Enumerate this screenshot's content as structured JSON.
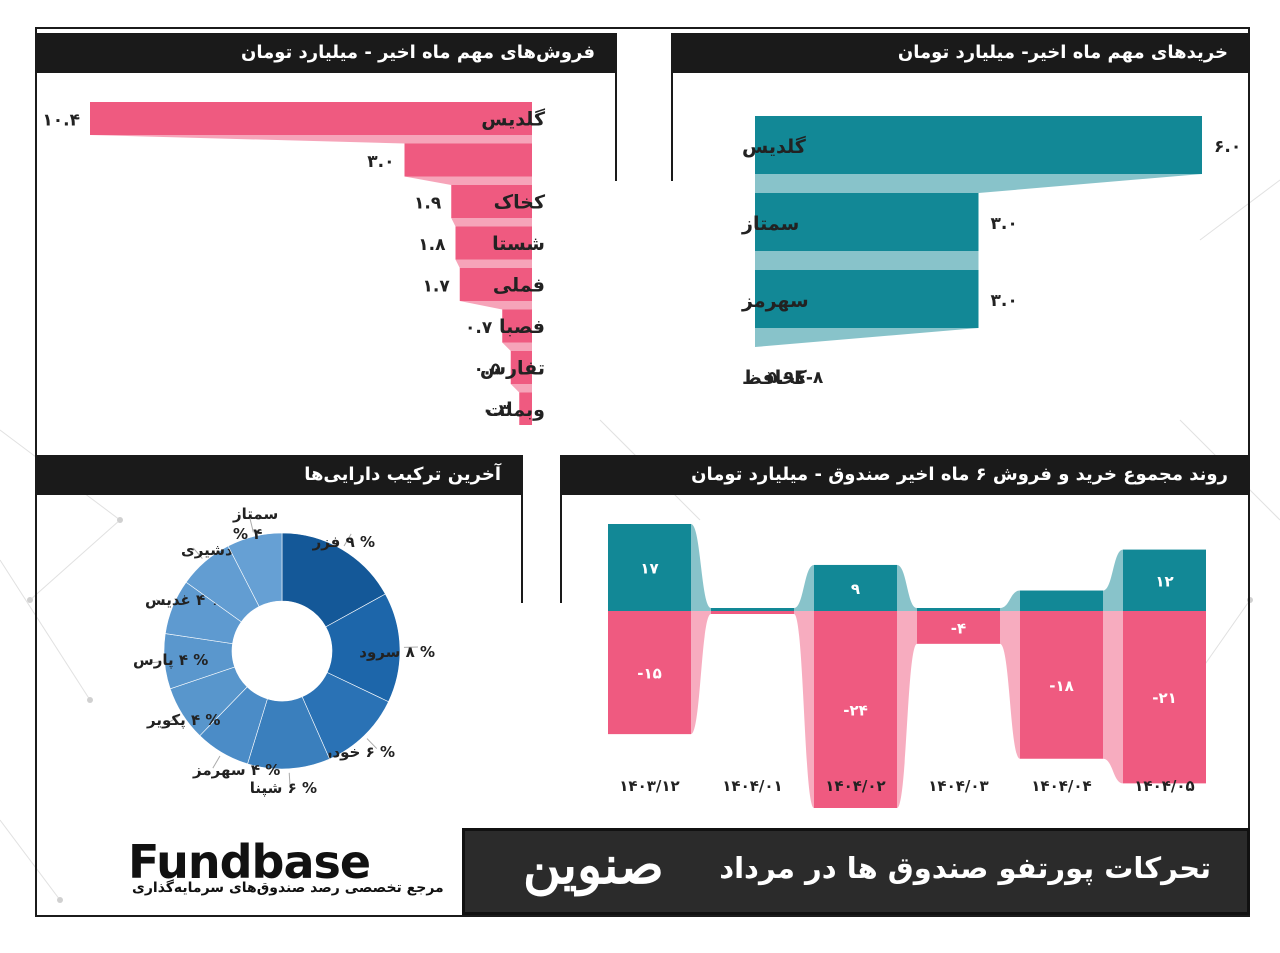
{
  "page": {
    "title": "تحرکات پورتفو صندوق ها در مرداد",
    "fund_name": "صنوین",
    "logo_text": "Fundbase",
    "logo_tagline": "مرجع تخصصی رصد صندوق‌های سرمایه‌گذاری"
  },
  "colors": {
    "sales": "#ef5a80",
    "purchases": "#128896",
    "donut": [
      "#145898",
      "#1d66aa",
      "#2a72b5",
      "#3a7fbd",
      "#4b8cc7",
      "#5896cc",
      "#5a97cd",
      "#5e9ad0",
      "#629dd2",
      "#66a0d4"
    ]
  },
  "panels": {
    "sales_title": "فروش‌های مهم ماه اخیر - میلیارد تومان",
    "purchases_title": "خریدهای مهم ماه اخیر- میلیارد تومان",
    "composition_title": "آخرین ترکیب دارایی‌ها",
    "trend_title": "روند مجموع خرید و فروش ۶ ماه اخیر صندوق - میلیارد تومان"
  },
  "chart_data": [
    {
      "id": "sales",
      "type": "bar",
      "orientation": "horizontal",
      "categories": [
        "گلدیس",
        "",
        "کخاک",
        "شستا",
        "فملی",
        "فصبا",
        "تفارس",
        "وبملت"
      ],
      "values": [
        10.4,
        3.0,
        1.9,
        1.8,
        1.7,
        0.7,
        0.5,
        0.3
      ],
      "value_labels": [
        "۱۰.۴",
        "۳.۰",
        "۱.۹",
        "۱.۸",
        "۱.۷",
        "۰.۷",
        "۰.۵",
        "۰.۳"
      ]
    },
    {
      "id": "purchases",
      "type": "bar",
      "orientation": "horizontal",
      "categories": [
        "گلدیس",
        "سمتاز",
        "سهرمز",
        "کحافظ"
      ],
      "values": [
        6.0,
        3.0,
        3.0,
        5.9e-08
      ],
      "value_labels": [
        "۶.۰",
        "۳.۰",
        "۳.۰",
        "۵.۹E-۸"
      ]
    },
    {
      "id": "composition",
      "type": "pie",
      "slices": [
        {
          "label": "% ۹ فزر",
          "value": 9
        },
        {
          "label": "% ۸ سرود",
          "value": 8
        },
        {
          "label": "% ۶ خودرو",
          "value": 6
        },
        {
          "label": "% ۶ شپنا",
          "value": 6
        },
        {
          "label": "% ۴ سهرمز",
          "value": 4
        },
        {
          "label": "% ۴ پکویر",
          "value": 4
        },
        {
          "label": "% ۴ پارس",
          "value": 4
        },
        {
          "label": "% ۴ غدیس",
          "value": 4
        },
        {
          "label": "% ۴ دشیری",
          "value": 4
        },
        {
          "label": "سمتاز\n% ۴",
          "value": 4
        }
      ]
    },
    {
      "id": "trend",
      "type": "bar",
      "categories": [
        "۱۴۰۳/۱۲",
        "۱۴۰۴/۰۱",
        "۱۴۰۴/۰۲",
        "۱۴۰۴/۰۳",
        "۱۴۰۴/۰۴",
        "۱۴۰۴/۰۵"
      ],
      "series": [
        {
          "values": [
            17,
            0,
            9,
            0,
            4,
            12
          ],
          "labels": [
            "۱۷",
            "",
            "۹",
            "",
            "",
            "۱۲"
          ]
        },
        {
          "values": [
            -15,
            0,
            -24,
            -4,
            -18,
            -21
          ],
          "labels": [
            "-۱۵",
            "",
            "-۲۴",
            "-۴",
            "-۱۸",
            "-۲۱"
          ]
        }
      ]
    }
  ]
}
